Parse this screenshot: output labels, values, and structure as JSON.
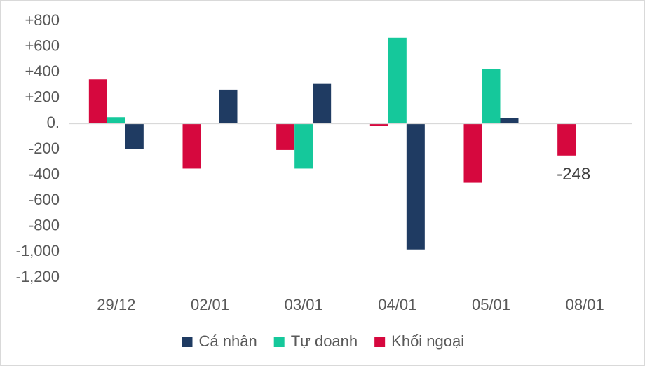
{
  "chart_data": {
    "type": "bar",
    "title": "",
    "xlabel": "",
    "ylabel": "",
    "categories": [
      "29/12",
      "02/01",
      "03/01",
      "04/01",
      "05/01",
      "08/01"
    ],
    "y_tick_labels": [
      "+800",
      "+600",
      "+400",
      "+200",
      "0.",
      "-200",
      "-400",
      "-600",
      "-800",
      "-1,000",
      "-1,200"
    ],
    "y_tick_values": [
      800,
      600,
      400,
      200,
      0,
      -200,
      -400,
      -600,
      -800,
      -1000,
      -1200
    ],
    "ylim": [
      -1200,
      800
    ],
    "grid": false,
    "legend_position": "bottom",
    "series": [
      {
        "name": "Khối ngoại",
        "color": "#d6083e",
        "values": [
          345,
          -350,
          -205,
          -15,
          -460,
          -248
        ]
      },
      {
        "name": "Tự doanh",
        "color": "#15c89b",
        "values": [
          50,
          null,
          -350,
          670,
          425,
          null
        ]
      },
      {
        "name": "Cá nhân",
        "color": "#1f3b62",
        "values": [
          -200,
          265,
          310,
          -980,
          45,
          null
        ]
      }
    ],
    "legend_order": [
      "Cá nhân",
      "Tự doanh",
      "Khối ngoại"
    ],
    "annotations": [
      {
        "series": "Khối ngoại",
        "category": "08/01",
        "text": "-248"
      }
    ]
  }
}
